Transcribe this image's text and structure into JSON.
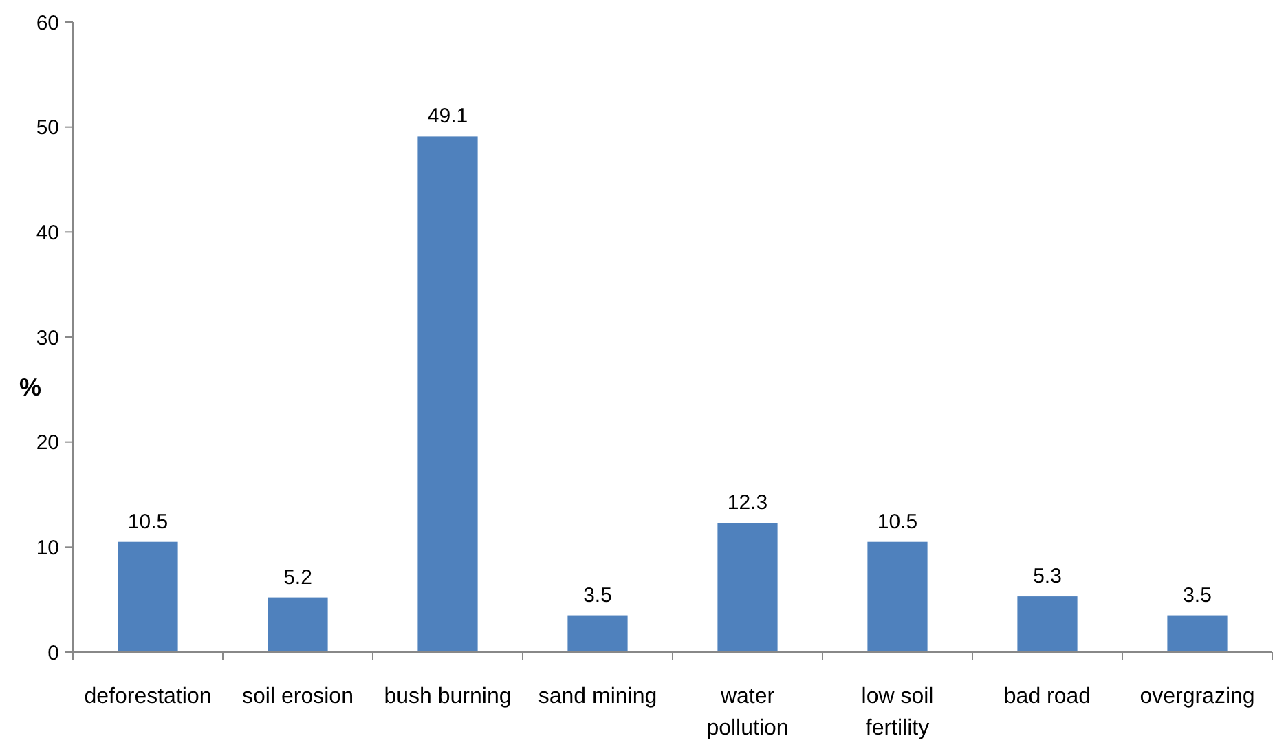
{
  "chart_data": {
    "type": "bar",
    "ylabel": "%",
    "categories": [
      "deforestation",
      "soil erosion",
      "bush burning",
      "sand mining",
      "water pollution",
      "low soil fertility",
      "bad road",
      "overgrazing"
    ],
    "values": [
      10.5,
      5.2,
      49.1,
      3.5,
      12.3,
      10.5,
      5.3,
      3.5
    ],
    "color": "#4f81bd",
    "ylim": [
      0,
      60
    ],
    "yticks": [
      0,
      10,
      20,
      30,
      40,
      50,
      60
    ],
    "data_labels": true,
    "grid": false
  }
}
